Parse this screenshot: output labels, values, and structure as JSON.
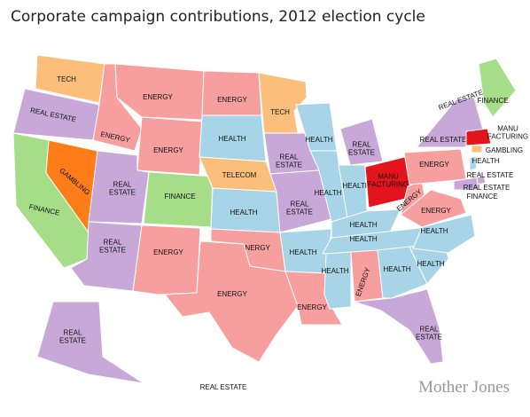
{
  "title": "Corporate campaign contributions, 2012 election cycle",
  "logo": "Mother Jones",
  "regions": [
    {
      "label": "TECH",
      "color": "#fbbf7b"
    },
    {
      "label": "REAL ESTATE",
      "color": "#c8a8d8"
    },
    {
      "label": "FINANCE",
      "color": "#a6dd88"
    },
    {
      "label": "GAMBLING",
      "color": "#ff7d19"
    },
    {
      "label": "ENERGY",
      "color": "#f79e9e"
    },
    {
      "label": "ENERGY",
      "color": "#f79e9e"
    },
    {
      "label": "ENERGY",
      "color": "#f79e9e"
    },
    {
      "label": [
        "REAL",
        "ESTATE"
      ],
      "color": "#c8a8d8"
    },
    {
      "label": [
        "REAL",
        "ESTATE"
      ],
      "color": "#c8a8d8"
    },
    {
      "label": "FINANCE",
      "color": "#a6dd88"
    },
    {
      "label": "ENERGY",
      "color": "#f79e9e"
    },
    {
      "label": "ENERGY",
      "color": "#f79e9e"
    },
    {
      "label": "HEALTH",
      "color": "#a8d4e8"
    },
    {
      "label": "TELECOM",
      "color": "#fbbf7b"
    },
    {
      "label": "HEALTH",
      "color": "#a8d4e8"
    },
    {
      "label": "ENERGY",
      "color": "#f79e9e"
    },
    {
      "label": "ENERGY",
      "color": "#f79e9e"
    },
    {
      "label": "TECH",
      "color": "#fbbf7b"
    },
    {
      "label": [
        "REAL",
        "ESTATE"
      ],
      "color": "#c8a8d8"
    },
    {
      "label": [
        "REAL",
        "ESTATE"
      ],
      "color": "#c8a8d8"
    },
    {
      "label": "HEALTH",
      "color": "#a8d4e8"
    },
    {
      "label": "ENERGY",
      "color": "#f79e9e"
    },
    {
      "label": "HEALTH",
      "color": "#a8d4e8"
    },
    {
      "label": "HEALTH",
      "color": "#a8d4e8"
    },
    {
      "label": [
        "REAL",
        "ESTATE"
      ],
      "color": "#c8a8d8"
    },
    {
      "label": "HEALTH",
      "color": "#a8d4e8"
    },
    {
      "label": [
        "MANU",
        "FACTURING"
      ],
      "color": "#e3141c"
    },
    {
      "label": "HEALTH",
      "color": "#a8d4e8"
    },
    {
      "label": "HEALTH",
      "color": "#a8d4e8"
    },
    {
      "label": "HEALTH",
      "color": "#a8d4e8"
    },
    {
      "label": "ENERGY",
      "color": "#f79e9e"
    },
    {
      "label": "HEALTH",
      "color": "#a8d4e8"
    },
    {
      "label": [
        "REAL",
        "ESTATE"
      ],
      "color": "#c8a8d8"
    },
    {
      "label": "HEALTH",
      "color": "#a8d4e8"
    },
    {
      "label": "HEALTH",
      "color": "#a8d4e8"
    },
    {
      "label": "ENERGY",
      "color": "#f79e9e"
    },
    {
      "label": "ENERGY",
      "color": "#f79e9e"
    },
    {
      "label": "ENERGY",
      "color": "#f79e9e"
    },
    {
      "label": "REAL ESTATE",
      "color": "#c8a8d8"
    },
    {
      "label": "FINANCE",
      "color": "#a6dd88"
    },
    {
      "label": "REAL ESTATE",
      "color": "#c8a8d8"
    },
    {
      "label": [
        "MANU",
        "FACTURING"
      ],
      "color": "#e3141c"
    },
    {
      "label": "GAMBLING",
      "color": "#fbbf7b"
    },
    {
      "label": "HEALTH",
      "color": "#a8d4e8"
    },
    {
      "label": "REAL ESTATE",
      "color": "#c8a8d8"
    },
    {
      "label": "REAL ESTATE",
      "color": "#c8a8d8"
    },
    {
      "label": "FINANCE",
      "color": "#a6dd88"
    },
    {
      "label": [
        "REAL",
        "ESTATE"
      ],
      "color": "#c8a8d8"
    },
    {
      "label": "REAL ESTATE",
      "color": "#c8a8d8"
    }
  ]
}
